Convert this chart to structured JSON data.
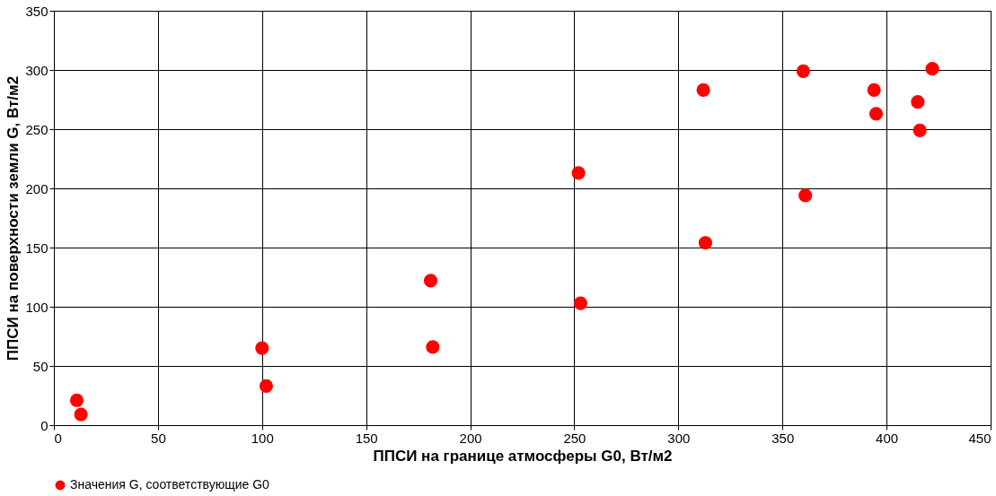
{
  "chart_data": {
    "type": "scatter",
    "xlabel": "ППСИ на границе атмосферы G0, Вт/м2",
    "ylabel": "ППСИ на поверхности земли G, Вт/м2",
    "xlim": [
      0,
      450
    ],
    "xticks": [
      0,
      50,
      100,
      150,
      200,
      250,
      300,
      350,
      400,
      450
    ],
    "ylim": [
      0,
      350
    ],
    "yticks": [
      0,
      50,
      100,
      150,
      200,
      250,
      300,
      350
    ],
    "grid": true,
    "legend": "bottom",
    "marker": "circle",
    "series": [
      {
        "name": "Значения G, соответствующие G0",
        "color": "#ff0000",
        "x": [
          11,
          13,
          100,
          102,
          181,
          182,
          252,
          253,
          312,
          313,
          360,
          361,
          394,
          395,
          415,
          416,
          422
        ],
        "values": [
          21,
          9,
          65,
          33,
          122,
          66,
          213,
          103,
          283,
          154,
          299,
          194,
          283,
          263,
          273,
          249,
          301
        ]
      }
    ]
  }
}
